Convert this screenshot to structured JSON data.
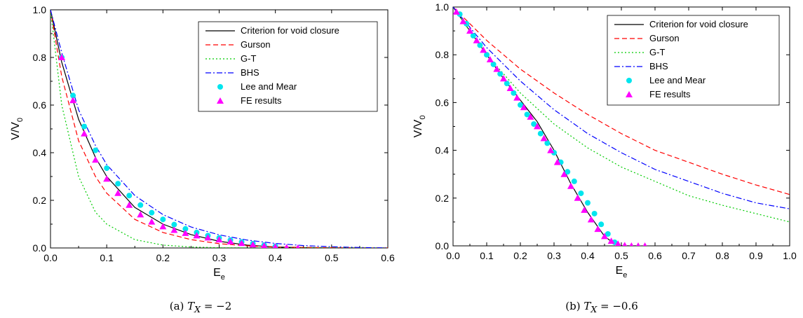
{
  "chart_data": [
    {
      "type": "line",
      "caption_prefix": "(a) ",
      "caption_var": "T",
      "caption_sub": "X",
      "caption_rest": " = −2",
      "xlabel": "E",
      "xlabel_sub": "e",
      "ylabel": "V/V",
      "ylabel_sub": "0",
      "xlim": [
        0,
        0.6
      ],
      "ylim": [
        0,
        1.0
      ],
      "xticks": [
        0.0,
        0.1,
        0.2,
        0.3,
        0.4,
        0.5,
        0.6
      ],
      "yticks": [
        0.0,
        0.2,
        0.4,
        0.6,
        0.8,
        1.0
      ],
      "xtick_labels": [
        "0.0",
        "0.1",
        "0.2",
        "0.3",
        "0.4",
        "0.5",
        "0.6"
      ],
      "ytick_labels": [
        "0.0",
        "0.2",
        "0.4",
        "0.6",
        "0.8",
        "1.0"
      ],
      "legend_position": "top-right",
      "series": [
        {
          "name": "Criterion for void closure",
          "style": "solid",
          "color": "#000000",
          "x": [
            0,
            0.02,
            0.05,
            0.08,
            0.1,
            0.15,
            0.2,
            0.25,
            0.3,
            0.35,
            0.4,
            0.45,
            0.5,
            0.55,
            0.6
          ],
          "y": [
            1.0,
            0.78,
            0.54,
            0.38,
            0.3,
            0.17,
            0.1,
            0.056,
            0.028,
            0.012,
            0.004,
            0.001,
            0.0,
            0.0,
            0.0
          ]
        },
        {
          "name": "Gurson",
          "style": "dashed",
          "color": "#ff0000",
          "x": [
            0,
            0.02,
            0.05,
            0.08,
            0.1,
            0.15,
            0.2,
            0.25,
            0.3,
            0.35,
            0.4,
            0.5,
            0.6
          ],
          "y": [
            1.0,
            0.72,
            0.45,
            0.3,
            0.23,
            0.12,
            0.065,
            0.035,
            0.018,
            0.009,
            0.004,
            0.001,
            0.0
          ]
        },
        {
          "name": "G-T",
          "style": "dotted",
          "color": "#00cc00",
          "x": [
            0,
            0.02,
            0.05,
            0.08,
            0.1,
            0.15,
            0.2,
            0.25,
            0.3,
            0.4,
            0.6
          ],
          "y": [
            1.0,
            0.6,
            0.3,
            0.15,
            0.1,
            0.035,
            0.012,
            0.004,
            0.001,
            0.0,
            0.0
          ]
        },
        {
          "name": "BHS",
          "style": "dashdot",
          "color": "#0000ff",
          "x": [
            0,
            0.02,
            0.05,
            0.08,
            0.1,
            0.15,
            0.2,
            0.25,
            0.3,
            0.35,
            0.4,
            0.45,
            0.5,
            0.55,
            0.6
          ],
          "y": [
            1.0,
            0.82,
            0.58,
            0.43,
            0.35,
            0.22,
            0.14,
            0.088,
            0.055,
            0.033,
            0.019,
            0.01,
            0.005,
            0.002,
            0.0
          ]
        },
        {
          "name": "Lee and Mear",
          "style": "marker-circle",
          "color": "#00e5ee",
          "x": [
            0.02,
            0.04,
            0.06,
            0.08,
            0.1,
            0.12,
            0.14,
            0.16,
            0.18,
            0.2,
            0.22,
            0.24,
            0.26,
            0.28,
            0.3,
            0.32,
            0.34,
            0.36,
            0.38,
            0.4
          ],
          "y": [
            0.8,
            0.64,
            0.51,
            0.41,
            0.335,
            0.27,
            0.22,
            0.18,
            0.148,
            0.12,
            0.098,
            0.08,
            0.065,
            0.052,
            0.042,
            0.033,
            0.025,
            0.018,
            0.012,
            0.007
          ]
        },
        {
          "name": "FE results",
          "style": "marker-triangle",
          "color": "#ff00ff",
          "x": [
            0.02,
            0.04,
            0.06,
            0.08,
            0.1,
            0.12,
            0.14,
            0.16,
            0.18,
            0.2,
            0.22,
            0.24,
            0.26,
            0.28,
            0.3,
            0.32,
            0.34,
            0.36,
            0.38,
            0.4,
            0.42,
            0.44
          ],
          "y": [
            0.8,
            0.62,
            0.48,
            0.37,
            0.29,
            0.23,
            0.18,
            0.14,
            0.11,
            0.09,
            0.075,
            0.062,
            0.052,
            0.043,
            0.035,
            0.027,
            0.02,
            0.014,
            0.009,
            0.005,
            0.002,
            0.0
          ]
        }
      ]
    },
    {
      "type": "line",
      "caption_prefix": "(b) ",
      "caption_var": "T",
      "caption_sub": "X",
      "caption_rest": " = −0.6",
      "xlabel": "E",
      "xlabel_sub": "e",
      "ylabel": "V/V",
      "ylabel_sub": "0",
      "xlim": [
        0,
        1.0
      ],
      "ylim": [
        0,
        1.0
      ],
      "xticks": [
        0.0,
        0.1,
        0.2,
        0.3,
        0.4,
        0.5,
        0.6,
        0.7,
        0.8,
        0.9,
        1.0
      ],
      "yticks": [
        0.0,
        0.2,
        0.4,
        0.6,
        0.8,
        1.0
      ],
      "xtick_labels": [
        "0.0",
        "0.1",
        "0.2",
        "0.3",
        "0.4",
        "0.5",
        "0.6",
        "0.7",
        "0.8",
        "0.9",
        "1.0"
      ],
      "ytick_labels": [
        "0.0",
        "0.2",
        "0.4",
        "0.6",
        "0.8",
        "1.0"
      ],
      "legend_position": "top-right",
      "series": [
        {
          "name": "Criterion for void closure",
          "style": "solid",
          "color": "#000000",
          "x": [
            0,
            0.05,
            0.1,
            0.15,
            0.2,
            0.25,
            0.3,
            0.35,
            0.4,
            0.45,
            0.48,
            0.5,
            0.55
          ],
          "y": [
            1.0,
            0.9,
            0.8,
            0.7,
            0.61,
            0.52,
            0.4,
            0.26,
            0.14,
            0.04,
            0.008,
            0.0,
            0.0
          ]
        },
        {
          "name": "Gurson",
          "style": "dashed",
          "color": "#ff0000",
          "x": [
            0,
            0.1,
            0.2,
            0.3,
            0.4,
            0.5,
            0.6,
            0.7,
            0.8,
            0.9,
            1.0
          ],
          "y": [
            1.0,
            0.86,
            0.74,
            0.64,
            0.55,
            0.47,
            0.4,
            0.35,
            0.3,
            0.255,
            0.215
          ]
        },
        {
          "name": "G-T",
          "style": "dotted",
          "color": "#00cc00",
          "x": [
            0,
            0.1,
            0.2,
            0.3,
            0.4,
            0.5,
            0.6,
            0.7,
            0.8,
            0.9,
            1.0
          ],
          "y": [
            1.0,
            0.8,
            0.64,
            0.51,
            0.41,
            0.33,
            0.27,
            0.21,
            0.17,
            0.135,
            0.1
          ]
        },
        {
          "name": "BHS",
          "style": "dashdot",
          "color": "#0000ff",
          "x": [
            0,
            0.1,
            0.2,
            0.3,
            0.4,
            0.5,
            0.6,
            0.7,
            0.8,
            0.9,
            1.0
          ],
          "y": [
            1.0,
            0.83,
            0.69,
            0.57,
            0.47,
            0.39,
            0.32,
            0.27,
            0.22,
            0.18,
            0.155
          ]
        },
        {
          "name": "Lee and Mear",
          "style": "marker-circle",
          "color": "#00e5ee",
          "x": [
            0.02,
            0.04,
            0.06,
            0.08,
            0.1,
            0.12,
            0.14,
            0.16,
            0.18,
            0.2,
            0.22,
            0.24,
            0.26,
            0.28,
            0.3,
            0.32,
            0.34,
            0.36,
            0.38,
            0.4,
            0.42,
            0.44,
            0.46,
            0.48
          ],
          "y": [
            0.97,
            0.93,
            0.88,
            0.84,
            0.8,
            0.76,
            0.72,
            0.68,
            0.64,
            0.59,
            0.55,
            0.51,
            0.47,
            0.43,
            0.39,
            0.35,
            0.31,
            0.27,
            0.22,
            0.18,
            0.135,
            0.09,
            0.05,
            0.015
          ]
        },
        {
          "name": "FE results",
          "style": "marker-triangle",
          "color": "#ff00ff",
          "x": [
            0.01,
            0.03,
            0.05,
            0.07,
            0.09,
            0.11,
            0.13,
            0.15,
            0.17,
            0.19,
            0.21,
            0.23,
            0.25,
            0.27,
            0.29,
            0.31,
            0.33,
            0.35,
            0.37,
            0.39,
            0.41,
            0.43,
            0.45,
            0.47,
            0.49,
            0.51,
            0.53,
            0.55,
            0.57
          ],
          "y": [
            0.98,
            0.94,
            0.9,
            0.86,
            0.82,
            0.78,
            0.74,
            0.7,
            0.66,
            0.62,
            0.58,
            0.54,
            0.5,
            0.45,
            0.4,
            0.35,
            0.3,
            0.25,
            0.2,
            0.15,
            0.11,
            0.07,
            0.04,
            0.02,
            0.008,
            0.002,
            0.0,
            0.0,
            0.0
          ]
        }
      ]
    }
  ]
}
